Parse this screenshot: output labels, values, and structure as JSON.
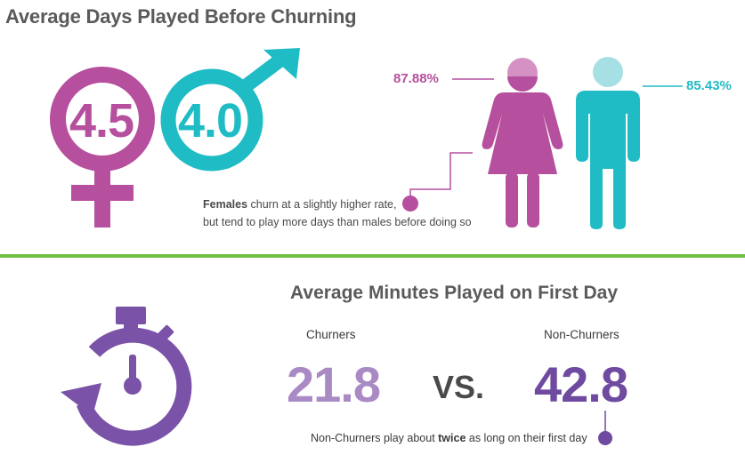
{
  "top": {
    "title": "Average Days Played Before Churning",
    "female_days": "4.5",
    "male_days": "4.0",
    "female_churn_pct": "87.88%",
    "male_churn_pct": "85.43%",
    "note_bold": "Females",
    "note_line1_rest": " churn at a slightly higher rate,",
    "note_line2": "but tend to play more days than males before doing so"
  },
  "bottom": {
    "title": "Average Minutes Played on First Day",
    "churners_label": "Churners",
    "non_churners_label": "Non-Churners",
    "churners_value": "21.8",
    "non_churners_value": "42.8",
    "vs": "VS.",
    "note_pre": "Non-Churners play about ",
    "note_bold": "twice",
    "note_post": " as long on their first day"
  },
  "colors": {
    "female": "#b64f9d",
    "female_light": "#d591c3",
    "male": "#1fbcc6",
    "male_light": "#a6dfe4",
    "churners": "#a98ac4",
    "non_churners": "#6e4aa0",
    "divider": "#6fbf44",
    "stopwatch": "#7a52a8"
  },
  "icons": [
    "female-symbol-icon",
    "male-symbol-icon",
    "woman-figure-icon",
    "man-figure-icon",
    "stopwatch-icon"
  ]
}
